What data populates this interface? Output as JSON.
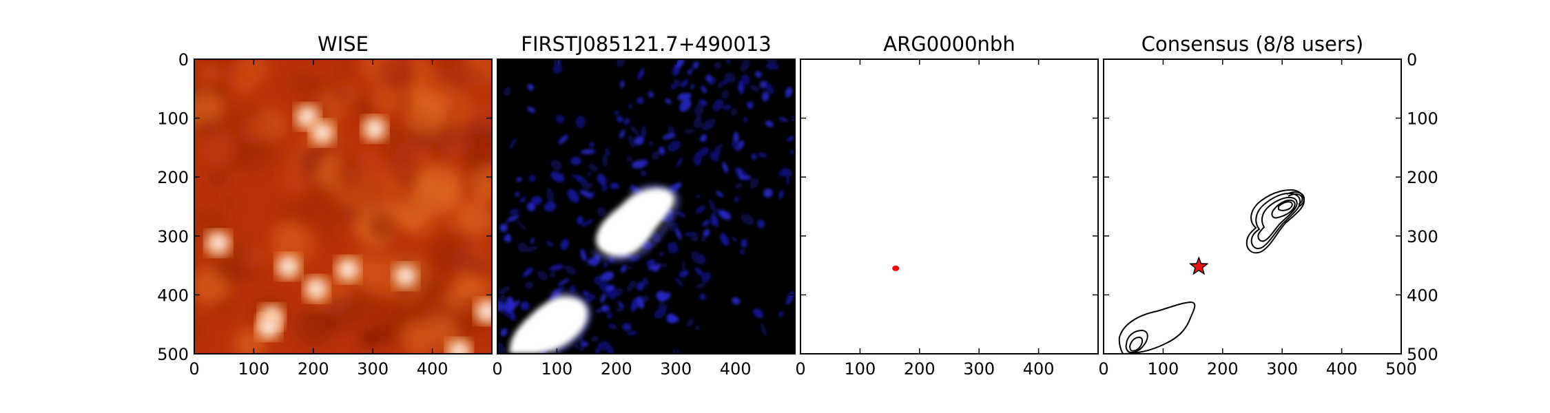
{
  "chart_data": [
    {
      "type": "heatmap",
      "title": "WISE",
      "xlim": [
        0,
        500
      ],
      "ylim": [
        500,
        0
      ],
      "x_ticks": [
        "0",
        "100",
        "200",
        "300",
        "400"
      ],
      "y_ticks": [
        "0",
        "100",
        "200",
        "300",
        "400",
        "500"
      ],
      "colormap": "gist_heat",
      "colors": {
        "background": "#b8330a",
        "mid": "#d65a1a",
        "bright": "#ffffff"
      },
      "bright_sources": [
        {
          "x": 190,
          "y": 98
        },
        {
          "x": 303,
          "y": 118
        },
        {
          "x": 215,
          "y": 125
        },
        {
          "x": 40,
          "y": 312
        },
        {
          "x": 158,
          "y": 352
        },
        {
          "x": 258,
          "y": 357
        },
        {
          "x": 355,
          "y": 368
        },
        {
          "x": 205,
          "y": 390
        },
        {
          "x": 130,
          "y": 438
        },
        {
          "x": 125,
          "y": 455
        },
        {
          "x": 492,
          "y": 428
        },
        {
          "x": 445,
          "y": 496
        }
      ]
    },
    {
      "type": "heatmap",
      "title": "FIRSTJ085121.7+490013",
      "xlim": [
        0,
        500
      ],
      "ylim": [
        500,
        0
      ],
      "x_ticks": [
        "0",
        "100",
        "200",
        "300",
        "400"
      ],
      "y_ticks": [],
      "colormap": "gist_heat",
      "colors": {
        "background": "#000000",
        "noise": "#1a1aa8",
        "bright": "#ffffff"
      },
      "sources": [
        {
          "x": 230,
          "y": 280,
          "label": "northeast lobe"
        },
        {
          "x": 70,
          "y": 455,
          "label": "southwest lobe"
        }
      ]
    },
    {
      "type": "scatter",
      "title": "ARG0000nbh",
      "xlim": [
        0,
        500
      ],
      "ylim": [
        500,
        0
      ],
      "x_ticks": [
        "0",
        "100",
        "200",
        "300",
        "400"
      ],
      "y_ticks": [],
      "points": [
        {
          "x": 160,
          "y": 355
        }
      ],
      "colors": {
        "marker": "#ff0000"
      }
    },
    {
      "type": "contour",
      "title": "Consensus (8/8 users)",
      "xlim": [
        0,
        500
      ],
      "ylim": [
        500,
        0
      ],
      "x_ticks": [
        "0",
        "100",
        "200",
        "300",
        "400",
        "500"
      ],
      "y_ticks": [
        "0",
        "100",
        "200",
        "300",
        "400",
        "500"
      ],
      "y_tick_side": "right",
      "consensus_marker": {
        "x": 160,
        "y": 352,
        "shape": "star",
        "color": "#ee1111"
      },
      "colors": {
        "contour": "#000000"
      }
    }
  ]
}
